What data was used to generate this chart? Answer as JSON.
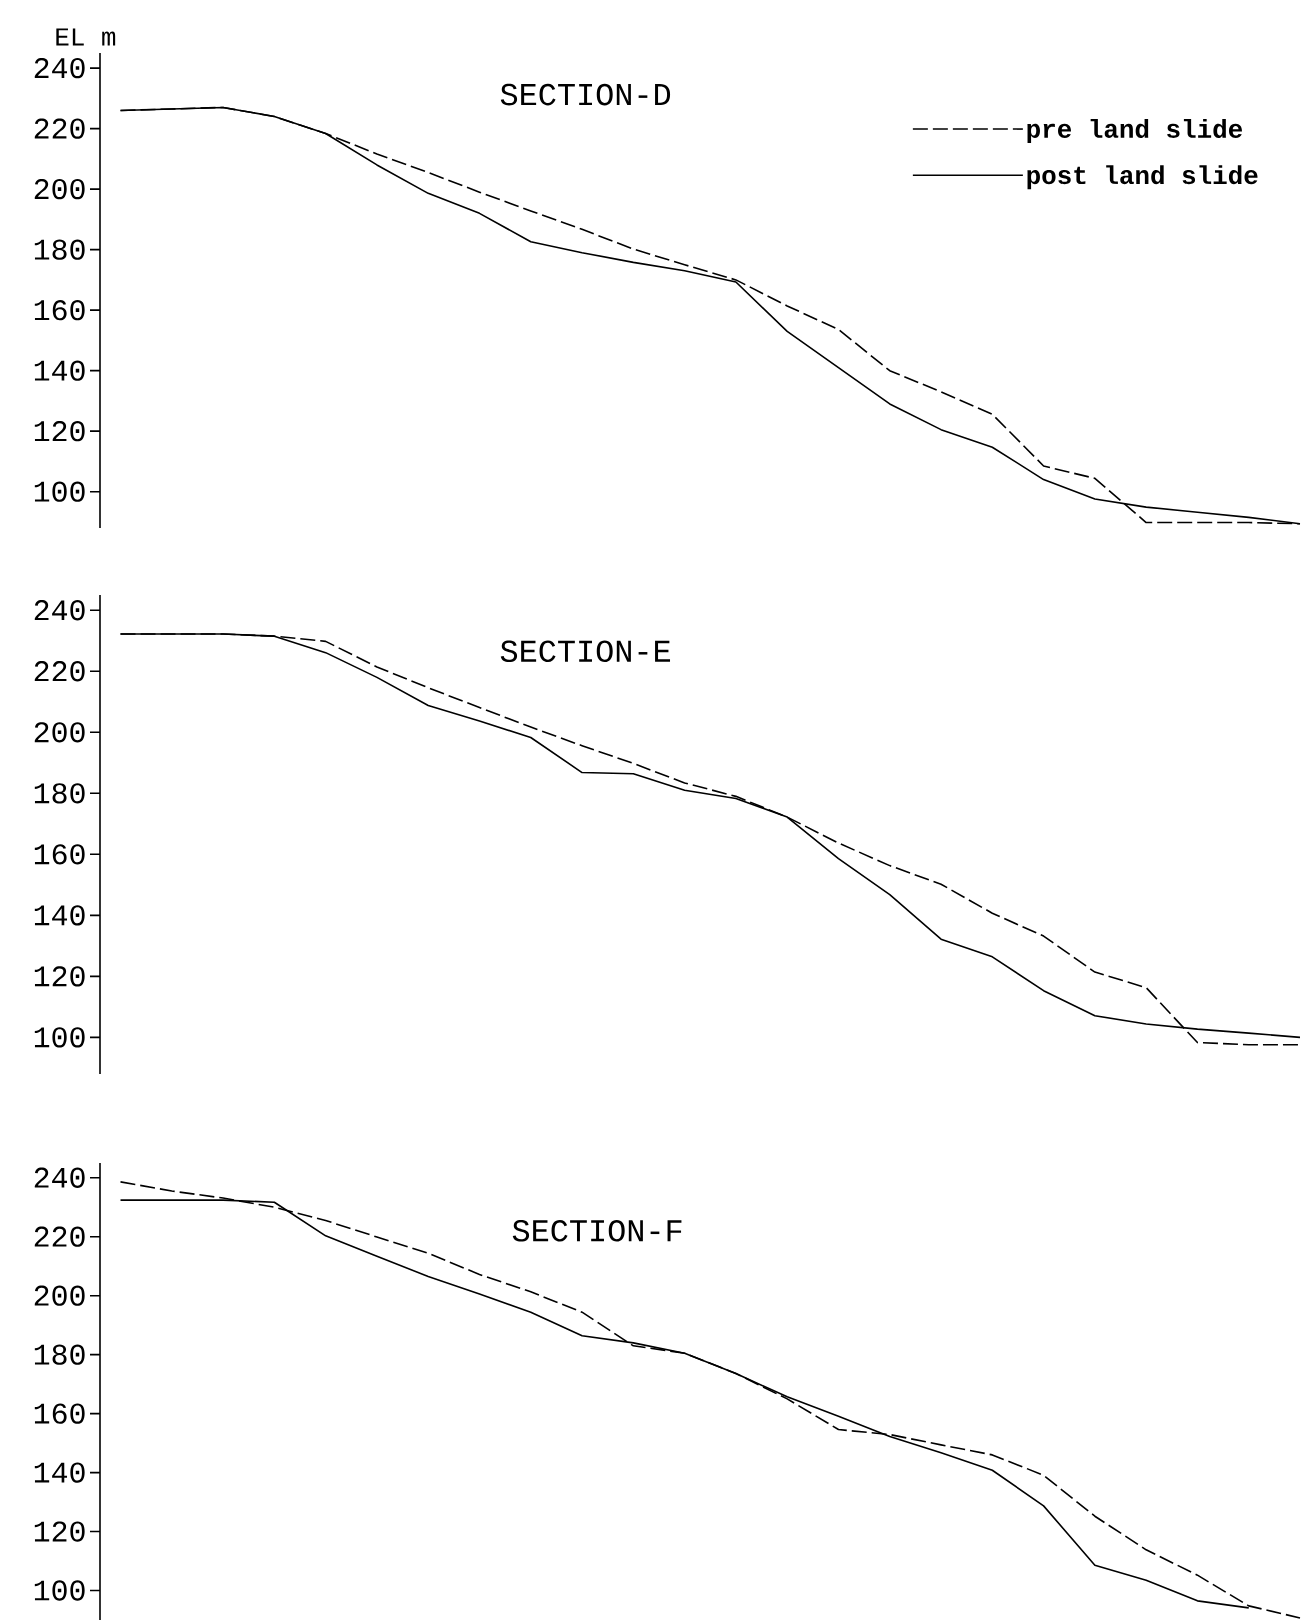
{
  "chart_data": [
    {
      "type": "line",
      "title": "SECTION-D",
      "ylabel": "EL m",
      "categories": [
        null,
        null,
        null,
        null,
        null,
        null,
        null,
        null,
        null,
        null,
        null,
        null,
        null,
        null,
        null,
        null,
        null,
        null,
        null,
        null,
        null,
        null,
        null,
        null
      ],
      "ylim": [
        88,
        245
      ],
      "yticks": [
        100,
        120,
        140,
        160,
        180,
        200,
        220,
        240
      ],
      "tick_labels": "y",
      "grid": false,
      "legend": "top right",
      "marker": "none",
      "series": [
        {
          "name": "pre land slide",
          "color": "#000000",
          "line_style": "dashed",
          "values": [
            226,
            226.5,
            227,
            224,
            218.4,
            211.6,
            205.5,
            199,
            192.8,
            186.7,
            180.2,
            175,
            170,
            161.4,
            153.6,
            140,
            133,
            125.6,
            108.5,
            104.4,
            89.8,
            89.8,
            89.8,
            89.4
          ]
        },
        {
          "name": "post land slide",
          "color": "#000000",
          "line_style": "solid",
          "values": [
            226,
            226.5,
            227,
            224,
            218.4,
            208,
            198.6,
            192,
            182.6,
            179,
            175.8,
            173,
            169.3,
            153,
            141,
            129,
            120.5,
            114.7,
            104,
            97.6,
            94.9,
            93.2,
            91.5,
            89.4
          ]
        }
      ]
    },
    {
      "type": "line",
      "title": "SECTION-E",
      "categories": [
        null,
        null,
        null,
        null,
        null,
        null,
        null,
        null,
        null,
        null,
        null,
        null,
        null,
        null,
        null,
        null,
        null,
        null,
        null,
        null,
        null,
        null,
        null,
        null
      ],
      "ylim": [
        88,
        245
      ],
      "yticks": [
        100,
        120,
        140,
        160,
        180,
        200,
        220,
        240
      ],
      "tick_labels": "y",
      "grid": false,
      "legend": false,
      "marker": "none",
      "series": [
        {
          "color": "#000000",
          "line_style": "dashed",
          "values": [
            232.2,
            232.2,
            232.2,
            231.5,
            229.8,
            221.4,
            214.6,
            208.1,
            201.7,
            195.6,
            189.8,
            183.4,
            179,
            172.2,
            163.7,
            156.3,
            150.2,
            140.7,
            133.2,
            121.4,
            116.3,
            98.3,
            97.6,
            97.6
          ]
        },
        {
          "color": "#000000",
          "line_style": "solid",
          "values": [
            232.2,
            232.2,
            232.2,
            231.5,
            226.1,
            218,
            208.8,
            203.7,
            198.3,
            186.8,
            186.4,
            181,
            178.3,
            172.2,
            158.6,
            146.8,
            132.2,
            126.4,
            115.3,
            107.1,
            104.4,
            102.7,
            101.4,
            100
          ]
        }
      ]
    },
    {
      "type": "line",
      "title": "SECTION-F",
      "categories": [
        null,
        null,
        null,
        null,
        null,
        null,
        null,
        null,
        null,
        null,
        null,
        null,
        null,
        null,
        null,
        null,
        null,
        null,
        null,
        null,
        null,
        null,
        null,
        null
      ],
      "ylim": [
        90,
        245
      ],
      "yticks": [
        100,
        120,
        140,
        160,
        180,
        200,
        220,
        240
      ],
      "tick_labels": "y",
      "grid": false,
      "legend": false,
      "marker": "none",
      "series": [
        {
          "color": "#000000",
          "line_style": "dashed",
          "values": [
            238.6,
            235.5,
            233.1,
            230,
            225.5,
            219.9,
            214.4,
            207.2,
            201.3,
            194.4,
            183,
            180.5,
            173.6,
            165,
            154.6,
            152.9,
            149.4,
            146,
            139.1,
            125.2,
            113.8,
            105.2,
            94.8,
            90.7
          ]
        },
        {
          "color": "#000000",
          "line_style": "solid",
          "values": [
            232.4,
            232.4,
            232.4,
            231.7,
            220.3,
            213.4,
            206.5,
            200.6,
            194.4,
            186.4,
            184,
            180.5,
            173.6,
            165.7,
            159.1,
            152.2,
            146.7,
            140.8,
            128.7,
            108.6,
            103.5,
            96.5,
            94.1,
            null
          ]
        }
      ]
    }
  ]
}
